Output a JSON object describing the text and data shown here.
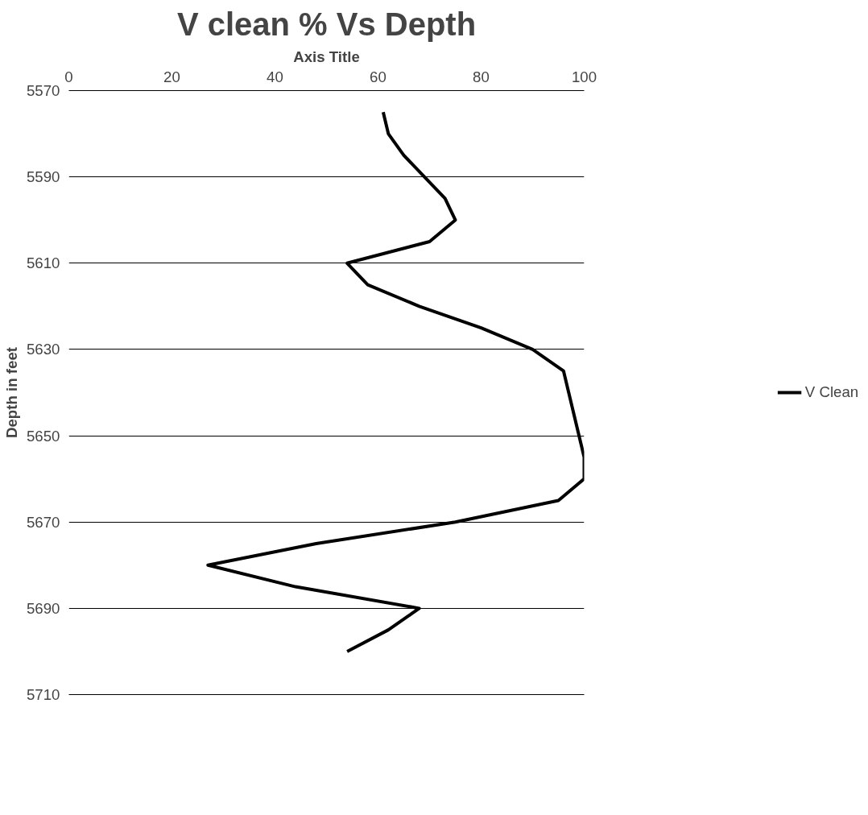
{
  "chart_data": {
    "type": "line",
    "title": "V clean % Vs Depth",
    "xlabel": "Axis Title",
    "ylabel": "Depth in feet",
    "xlim": [
      0,
      100
    ],
    "xticks": [
      0,
      20,
      40,
      60,
      80,
      100
    ],
    "ylim": [
      5710,
      5570
    ],
    "yticks": [
      5570,
      5590,
      5610,
      5630,
      5650,
      5670,
      5690,
      5710
    ],
    "grid": "y",
    "legend": "right",
    "orientation": "horizontal",
    "marker": "none",
    "line_style": "solid",
    "series": [
      {
        "name": "V Clean",
        "color": "#000000",
        "values": [
          61,
          62,
          65,
          69,
          73,
          75,
          70,
          54,
          58,
          68,
          80,
          90,
          96,
          97,
          98,
          99,
          100,
          100,
          95,
          75,
          48,
          27,
          44,
          68,
          62,
          54
        ],
        "x": [
          5575,
          5580,
          5585,
          5590,
          5595,
          5600,
          5605,
          5610,
          5615,
          5620,
          5625,
          5630,
          5635,
          5640,
          5645,
          5650,
          5655,
          5660,
          5665,
          5670,
          5675,
          5680,
          5685,
          5690,
          5695,
          5700
        ]
      }
    ]
  }
}
